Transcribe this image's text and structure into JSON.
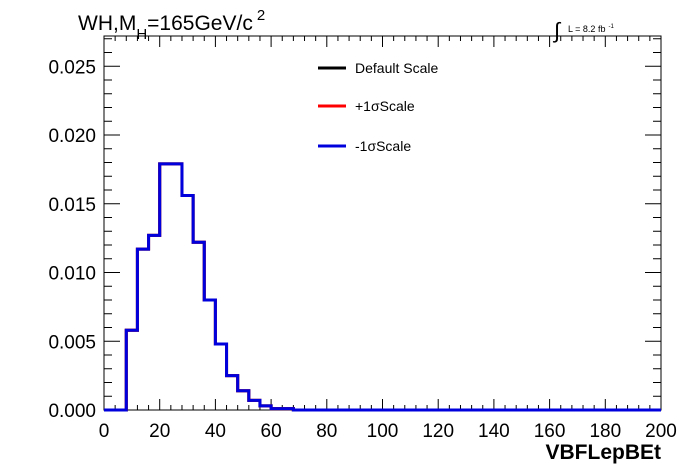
{
  "chart_data": {
    "type": "histogram",
    "title_parts": {
      "main": "WH,M",
      "subscript": "H",
      "rest": "=165GeV/c",
      "superscript": "2"
    },
    "lumi_parts": {
      "integral": "∫",
      "text": "L = 8.2 fb",
      "superscript": "-1"
    },
    "xlabel": "VBFLepBEt",
    "ylabel": "",
    "xlim": [
      0,
      200
    ],
    "ylim": [
      0,
      0.0272
    ],
    "xticks": [
      0,
      20,
      40,
      60,
      80,
      100,
      120,
      140,
      160,
      180,
      200
    ],
    "xtick_labels": [
      "0",
      "20",
      "40",
      "60",
      "80",
      "100",
      "120",
      "140",
      "160",
      "180",
      "200"
    ],
    "yticks": [
      0,
      0.005,
      0.01,
      0.015,
      0.02,
      0.025
    ],
    "ytick_labels": [
      "0.000",
      "0.005",
      "0.010",
      "0.015",
      "0.020",
      "0.025"
    ],
    "legend_position": "top-center",
    "bin_width": 4,
    "bin_edges_start": 0,
    "series": [
      {
        "name": "Default Scale",
        "color": "#000000",
        "values": [
          0,
          0,
          0.0058,
          0.0117,
          0.0127,
          0.0179,
          0.0179,
          0.0156,
          0.0122,
          0.008,
          0.0048,
          0.0025,
          0.0014,
          0.0007,
          0.0003,
          0.0001,
          0.0001,
          0,
          0,
          0,
          0,
          0,
          0,
          0,
          0,
          0,
          0,
          0,
          0,
          0,
          0,
          0,
          0,
          0,
          0,
          0,
          0,
          0,
          0,
          0,
          0,
          0,
          0,
          0,
          0,
          0,
          0,
          0,
          0,
          0
        ]
      },
      {
        "name": "+1σScale",
        "color": "#ff0000",
        "values": [
          0,
          0,
          0.0058,
          0.0117,
          0.0127,
          0.0179,
          0.0179,
          0.0156,
          0.0122,
          0.008,
          0.0048,
          0.0025,
          0.0014,
          0.0007,
          0.0003,
          0.0001,
          0.0001,
          0,
          0,
          0,
          0,
          0,
          0,
          0,
          0,
          0,
          0,
          0,
          0,
          0,
          0,
          0,
          0,
          0,
          0,
          0,
          0,
          0,
          0,
          0,
          0,
          0,
          0,
          0,
          0,
          0,
          0,
          0,
          0,
          0
        ]
      },
      {
        "name": "-1σScale",
        "color": "#0000dd",
        "values": [
          0,
          0,
          0.0058,
          0.0117,
          0.0127,
          0.0179,
          0.0179,
          0.0156,
          0.0122,
          0.008,
          0.0048,
          0.0025,
          0.0014,
          0.0007,
          0.0003,
          0.0001,
          0.0001,
          0,
          0,
          0,
          0,
          0,
          0,
          0,
          0,
          0,
          0,
          0,
          0,
          0,
          0,
          0,
          0,
          0,
          0,
          0,
          0,
          0,
          0,
          0,
          0,
          0,
          0,
          0,
          0,
          0,
          0,
          0,
          0,
          0
        ]
      }
    ]
  }
}
